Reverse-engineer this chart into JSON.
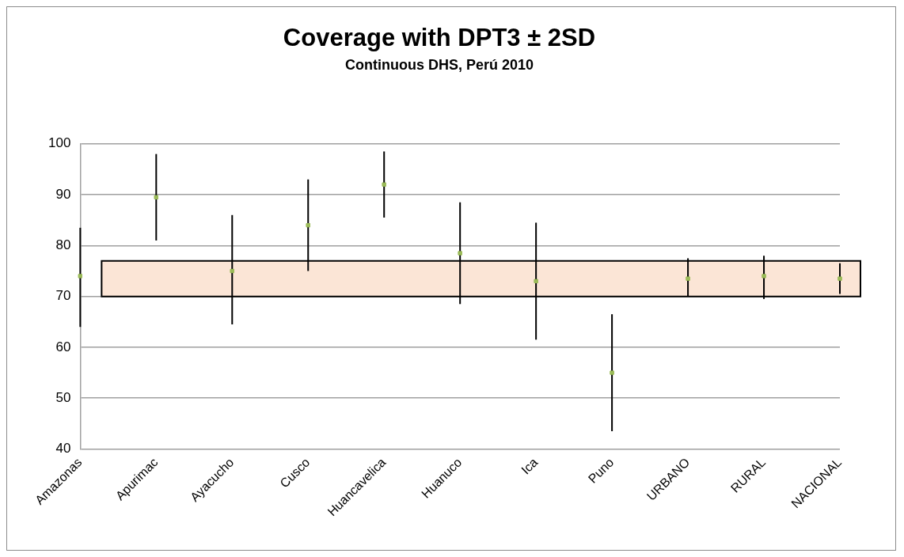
{
  "chart_data": {
    "type": "scatter",
    "title": "Coverage with DPT3 ± 2SD",
    "subtitle": "Continuous DHS, Perú 2010",
    "categories": [
      "Amazonas",
      "Apurimac",
      "Ayacucho",
      "Cusco",
      "Huancavelica",
      "Huanuco",
      "Ica",
      "Puno",
      "URBANO",
      "RURAL",
      "NACIONAL"
    ],
    "values": [
      74,
      89.5,
      75,
      84,
      92,
      78.5,
      73,
      55,
      73.5,
      74,
      73.5
    ],
    "errors": [
      [
        64,
        83.5
      ],
      [
        81,
        98
      ],
      [
        64.5,
        86
      ],
      [
        75,
        93
      ],
      [
        85.5,
        98.5
      ],
      [
        68.5,
        88.5
      ],
      [
        61.5,
        84.5
      ],
      [
        43.5,
        66.5
      ],
      [
        70,
        77.5
      ],
      [
        69.5,
        78
      ],
      [
        70.5,
        76.5
      ]
    ],
    "color": "#9bbb59",
    "marker": "square",
    "ylim": [
      40,
      100
    ],
    "yticks": [
      40,
      50,
      60,
      70,
      80,
      90,
      100
    ],
    "grid": "y",
    "legend": false,
    "bands": [
      {
        "axis": "y",
        "from": 70,
        "to": 77,
        "color": "#fbe5d6"
      }
    ]
  }
}
